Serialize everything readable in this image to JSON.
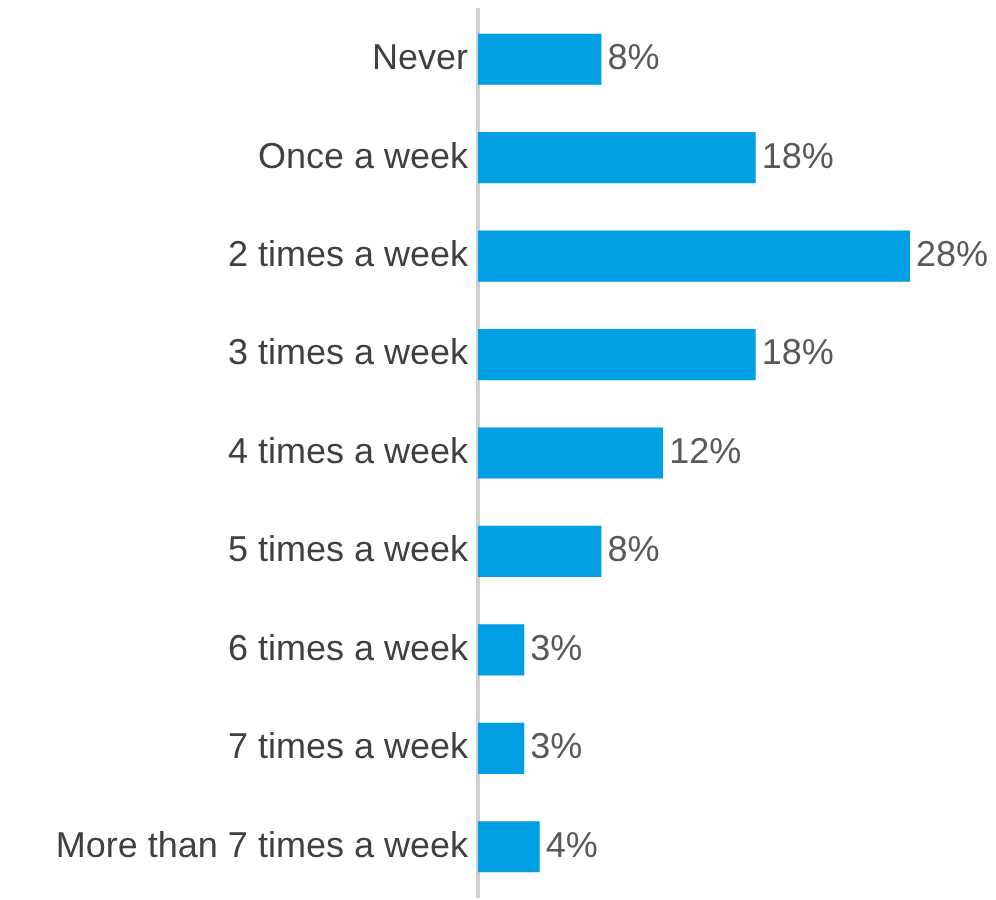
{
  "chart_data": {
    "type": "bar",
    "orientation": "horizontal",
    "categories": [
      "Never",
      "Once a week",
      "2 times a week",
      "3 times a week",
      "4 times a week",
      "5 times a week",
      "6 times a week",
      "7 times a week",
      "More than 7 times a week"
    ],
    "values": [
      8,
      18,
      28,
      18,
      12,
      8,
      3,
      3,
      4
    ],
    "color": "#009fe3",
    "value_labels": [
      "8%",
      "18%",
      "28%",
      "18%",
      "12%",
      "8%",
      "3%",
      "3%",
      "4%"
    ],
    "grid": false,
    "legend": false
  }
}
